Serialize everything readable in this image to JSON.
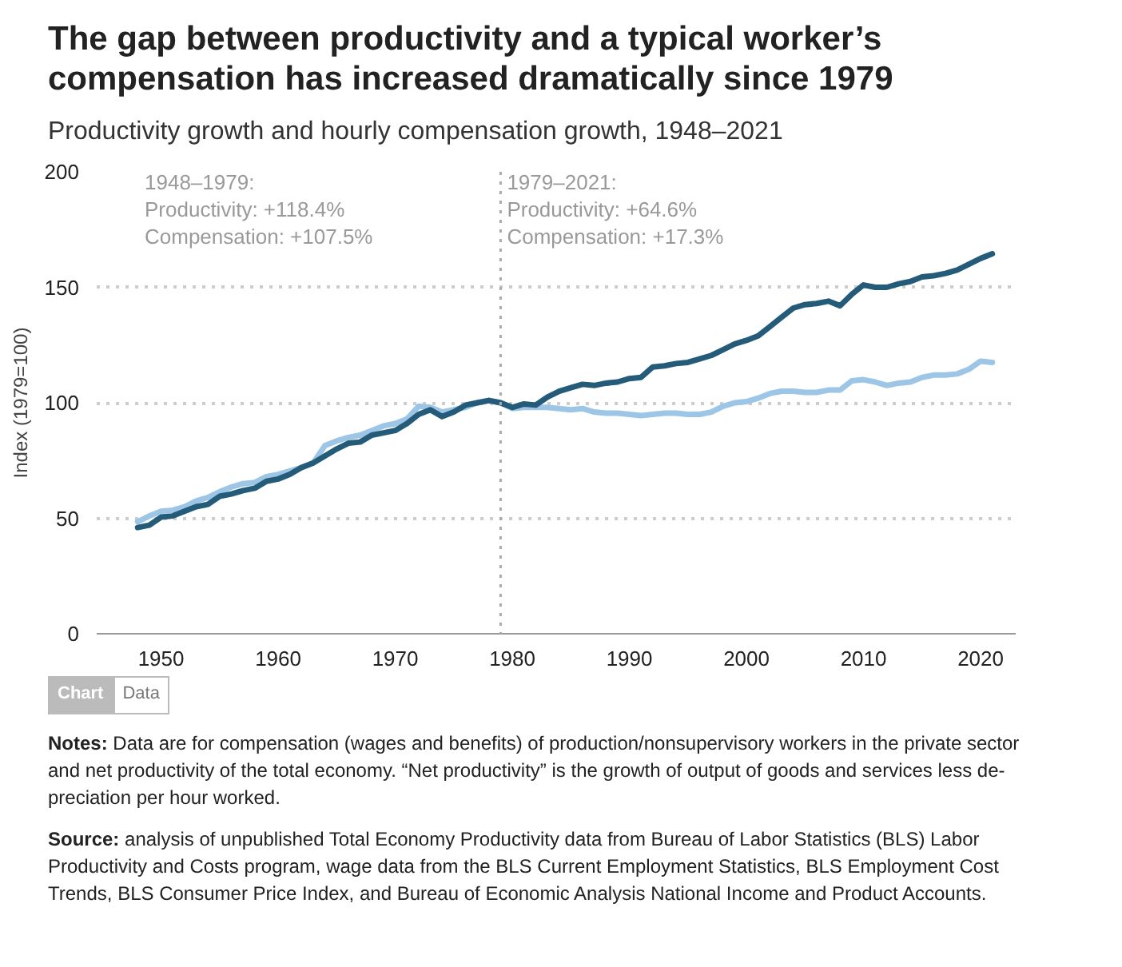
{
  "chart_data": {
    "type": "line",
    "title": "The gap between productivity and a typical worker’s compensation has increased dramatically since 1979",
    "subtitle": "Productivity growth and hourly compensation growth, 1948–2021",
    "ylabel": "Index (1979=100)",
    "x": [
      1948,
      1949,
      1950,
      1951,
      1952,
      1953,
      1954,
      1955,
      1956,
      1957,
      1958,
      1959,
      1960,
      1961,
      1962,
      1963,
      1964,
      1965,
      1966,
      1967,
      1968,
      1969,
      1970,
      1971,
      1972,
      1973,
      1974,
      1975,
      1976,
      1977,
      1978,
      1979,
      1980,
      1981,
      1982,
      1983,
      1984,
      1985,
      1986,
      1987,
      1988,
      1989,
      1990,
      1991,
      1992,
      1993,
      1994,
      1995,
      1996,
      1997,
      1998,
      1999,
      2000,
      2001,
      2002,
      2003,
      2004,
      2005,
      2006,
      2007,
      2008,
      2009,
      2010,
      2011,
      2012,
      2013,
      2014,
      2015,
      2016,
      2017,
      2018,
      2019,
      2020,
      2021
    ],
    "series": [
      {
        "color": "#9cc5e6",
        "values": [
          48.5,
          51,
          53,
          53.5,
          55,
          57.5,
          59,
          61.5,
          63.5,
          65,
          65.5,
          68,
          69,
          70.5,
          72,
          74,
          81.5,
          83.5,
          85,
          86,
          88,
          90,
          91,
          93,
          98.5,
          98,
          96,
          97,
          98,
          100,
          101,
          100,
          97.5,
          98,
          98,
          98,
          97.5,
          97,
          97.5,
          96,
          95.5,
          95.5,
          95,
          94.5,
          95,
          95.5,
          95.5,
          95,
          95,
          96,
          98.5,
          100,
          100.5,
          102,
          104,
          105,
          105,
          104.5,
          104.5,
          105.5,
          105.5,
          109.5,
          110,
          109,
          107.5,
          108.5,
          109,
          111,
          112,
          112,
          112.5,
          114.5,
          118,
          117.5
        ]
      },
      {
        "color": "#245b78",
        "values": [
          46,
          47,
          50.5,
          51,
          53,
          55,
          56,
          59.5,
          60.5,
          62,
          63,
          66,
          67,
          69,
          72,
          74,
          77,
          80,
          82.5,
          83,
          86,
          87,
          88,
          91,
          95,
          97,
          94,
          96,
          99,
          100,
          101,
          100,
          98,
          99.5,
          99,
          102.5,
          105,
          106.5,
          108,
          107.5,
          108.5,
          109,
          110.5,
          111,
          115.5,
          116,
          117,
          117.5,
          119,
          120.5,
          123,
          125.5,
          127,
          129,
          133,
          137,
          141,
          142.5,
          143,
          144,
          142,
          147,
          151,
          150,
          150,
          151.5,
          152.5,
          154.5,
          155,
          156,
          157.5,
          160,
          162.5,
          164.5
        ]
      }
    ],
    "xlim": [
      1944.5,
      2023
    ],
    "xticks": [
      1950,
      1960,
      1970,
      1980,
      1990,
      2000,
      2010,
      2020
    ],
    "ylim": [
      0,
      200
    ],
    "yticks": [
      0,
      50,
      100,
      150,
      200
    ],
    "grid": "y",
    "ref_lines": [
      {
        "axis": "x",
        "value": 1979,
        "line_style": "dotted",
        "color": "#aaaaaa"
      }
    ],
    "annotations": [
      "1948–1979:\nProductivity: +118.4%\nCompensation: +107.5%",
      "1979–2021:\nProductivity: +64.6%\nCompensation: +17.3%",
      "Chart",
      "Data",
      "Notes: Data are for compensation (wages and benefits) of production/nonsupervisory workers in the private sector and net productivity of the total economy. “Net productivity” is the growth of output of goods and services less de-preciation per hour worked.",
      "Source: analysis of unpublished Total Economy Productivity data from Bureau of Labor Statistics (BLS) Labor Productivity and Costs program, wage data from the BLS Current Employment Statistics, BLS Employment Cost Trends, BLS Consumer Price Index, and Bureau of Economic Analysis National Income and Product Accounts."
    ]
  }
}
